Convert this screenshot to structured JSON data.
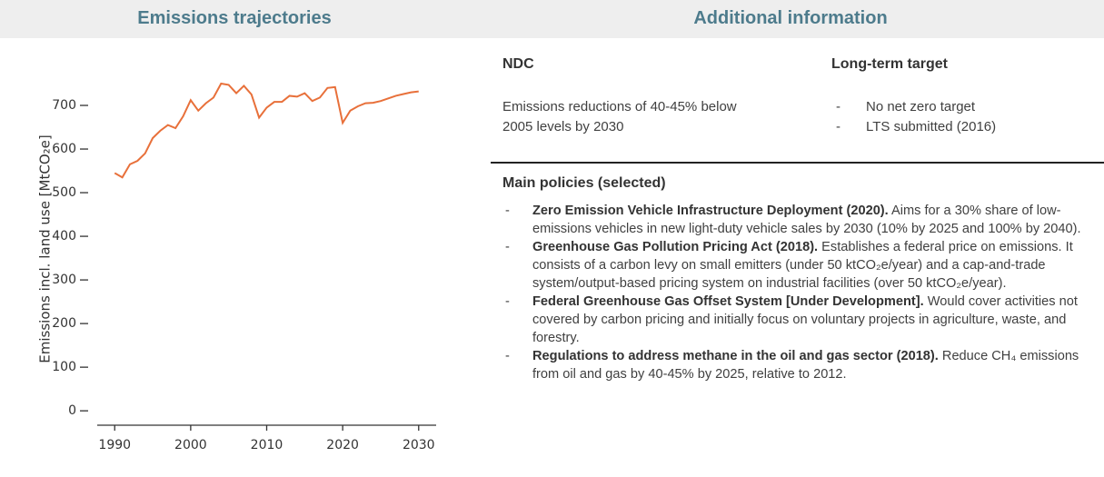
{
  "left": {
    "header": "Emissions trajectories"
  },
  "chart_data": {
    "type": "line",
    "ylabel": "Emissions incl. land use [MtCO₂e]",
    "x": [
      1990,
      1991,
      1992,
      1993,
      1994,
      1995,
      1996,
      1997,
      1998,
      1999,
      2000,
      2001,
      2002,
      2003,
      2004,
      2005,
      2006,
      2007,
      2008,
      2009,
      2010,
      2011,
      2012,
      2013,
      2014,
      2015,
      2016,
      2017,
      2018,
      2019,
      2020,
      2021,
      2022,
      2023,
      2024,
      2025,
      2026,
      2027,
      2028,
      2029,
      2030
    ],
    "values": [
      545,
      535,
      565,
      573,
      590,
      625,
      642,
      655,
      648,
      675,
      712,
      688,
      705,
      718,
      750,
      747,
      728,
      745,
      725,
      672,
      695,
      708,
      708,
      722,
      720,
      728,
      710,
      718,
      740,
      742,
      660,
      688,
      698,
      705,
      706,
      710,
      716,
      722,
      726,
      730,
      732
    ],
    "color": "#e8703a",
    "xlim": [
      1987.7,
      2032.3
    ],
    "xticks": [
      1990,
      2000,
      2010,
      2020,
      2030
    ],
    "ylim": [
      -33,
      775
    ],
    "yticks": [
      0,
      100,
      200,
      300,
      400,
      500,
      600,
      700
    ],
    "grid": false
  },
  "right": {
    "header": "Additional information",
    "ndc": {
      "title": "NDC",
      "text": [
        "Emissions reductions of 40-45% below",
        "2005 levels by 2030"
      ]
    },
    "long_term": {
      "title": "Long-term target",
      "items": [
        "No net zero target",
        "LTS submitted (2016)"
      ]
    },
    "policies": {
      "title": "Main policies (selected)",
      "items": [
        {
          "title": "Zero Emission Vehicle Infrastructure Deployment (2020).",
          "text": "Aims for a 30% share of low-emissions vehicles in new light-duty vehicle sales by 2030 (10% by 2025 and 100% by 2040)."
        },
        {
          "title": "Greenhouse Gas Pollution Pricing Act (2018).",
          "text": "Establishes a federal price on emissions. It consists of a carbon levy on small emitters (under 50 ktCO₂e/year) and a cap-and-trade system/output-based pricing system on industrial facilities (over 50 ktCO₂e/year)."
        },
        {
          "title": "Federal Greenhouse Gas Offset System [Under Development].",
          "text": "Would cover activities not covered by carbon pricing and initially focus on voluntary projects in agriculture, waste, and forestry."
        },
        {
          "title": "Regulations to address methane in the oil and gas sector (2018).",
          "text": "Reduce CH₄ emissions from oil and gas by 40-45% by 2025, relative to 2012."
        }
      ]
    }
  }
}
